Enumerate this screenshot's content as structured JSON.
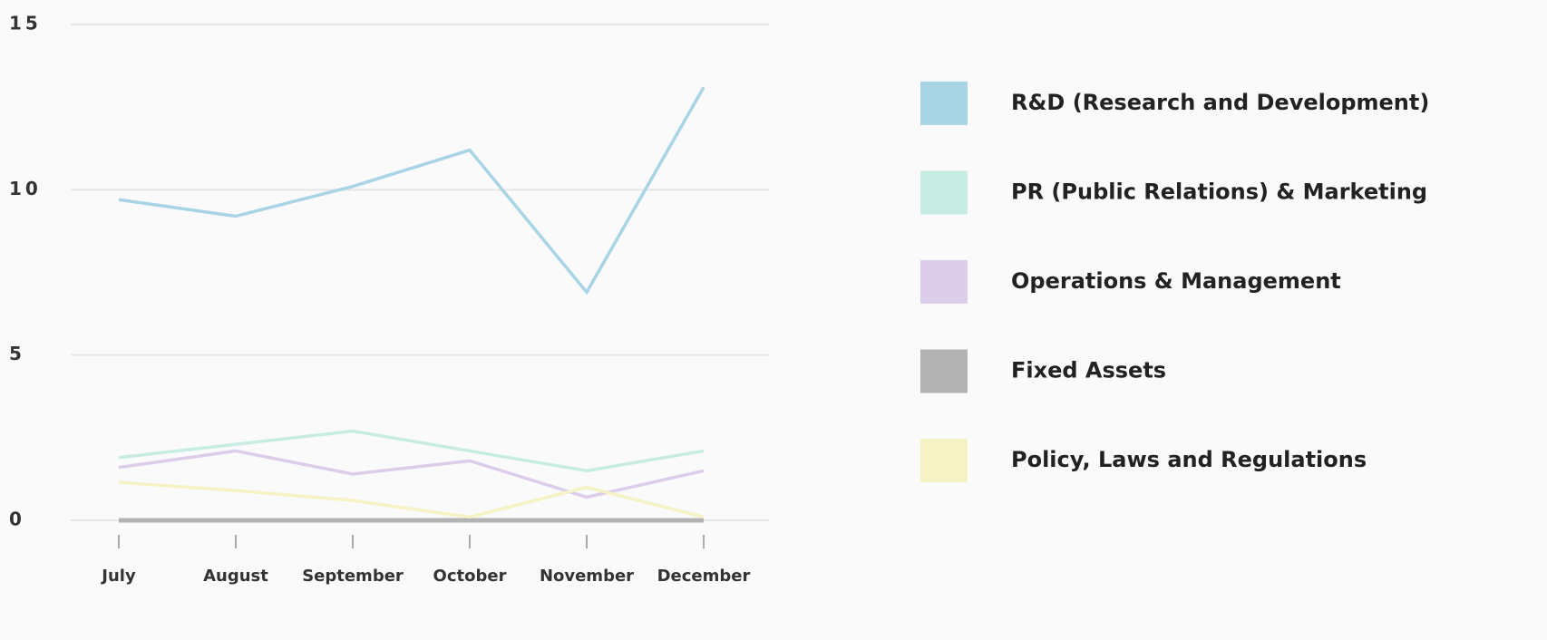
{
  "chart_data": {
    "type": "line",
    "categories": [
      "July",
      "August",
      "September",
      "October",
      "November",
      "December"
    ],
    "series": [
      {
        "name": "R&D (Research and Development)",
        "color": "#a9d4e6",
        "values": [
          9.7,
          9.2,
          10.1,
          11.2,
          6.9,
          13.1
        ]
      },
      {
        "name": "PR (Public Relations) & Marketing",
        "color": "#c6ece3",
        "values": [
          1.9,
          2.3,
          2.7,
          2.1,
          1.5,
          2.1
        ]
      },
      {
        "name": "Operations & Management",
        "color": "#dccdeb",
        "values": [
          1.6,
          2.1,
          1.4,
          1.8,
          0.7,
          1.5
        ]
      },
      {
        "name": "Fixed Assets",
        "color": "#b3b3b3",
        "values": [
          0,
          0,
          0,
          0,
          0,
          0
        ]
      },
      {
        "name": "Policy, Laws and Regulations",
        "color": "#f5f3c4",
        "values": [
          1.15,
          0.9,
          0.6,
          0.1,
          1.0,
          0.1
        ]
      }
    ],
    "ylim": [
      0,
      15
    ],
    "yticks": [
      0,
      5,
      10,
      15
    ],
    "grid": true,
    "legend": "right"
  }
}
